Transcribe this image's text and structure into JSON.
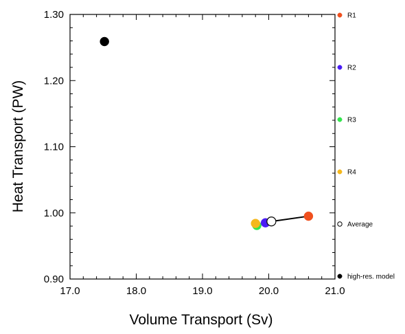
{
  "chart_data": {
    "type": "scatter",
    "title": "",
    "xlabel": "Volume Transport (Sv)",
    "ylabel": "Heat Transport (PW)",
    "xlim": [
      17.0,
      21.0
    ],
    "ylim": [
      0.9,
      1.3
    ],
    "x_ticks": [
      "17.0",
      "18.0",
      "19.0",
      "20.0",
      "21.0"
    ],
    "y_ticks": [
      "0.90",
      "1.00",
      "1.10",
      "1.20",
      "1.30"
    ],
    "grid": false,
    "legend_position": "right",
    "series": [
      {
        "name": "R1",
        "color": "#f0501e",
        "marker": "filled-circle",
        "x": 20.6,
        "y": 0.995
      },
      {
        "name": "R2",
        "color": "#4a1cf5",
        "marker": "filled-circle",
        "x": 19.95,
        "y": 0.985
      },
      {
        "name": "R3",
        "color": "#33e64d",
        "marker": "filled-circle",
        "x": 19.82,
        "y": 0.981
      },
      {
        "name": "R4",
        "color": "#f5b81c",
        "marker": "filled-circle",
        "x": 19.8,
        "y": 0.984
      },
      {
        "name": "Average",
        "color": "#000000",
        "marker": "open-circle",
        "x": 20.04,
        "y": 0.987
      },
      {
        "name": "high-res. model",
        "color": "#000000",
        "marker": "filled-circle",
        "x": 17.52,
        "y": 1.259
      }
    ],
    "segments": [
      {
        "from": [
          20.04,
          0.987
        ],
        "to": [
          20.6,
          0.995
        ],
        "color": "#000000"
      }
    ]
  }
}
